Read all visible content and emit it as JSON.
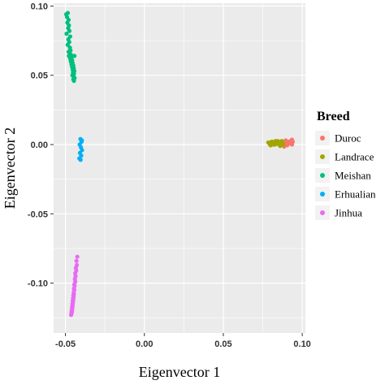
{
  "chart_data": {
    "type": "scatter",
    "xlabel": "Eigenvector 1",
    "ylabel": "Eigenvector 2",
    "xlim": [
      -0.0575,
      0.102
    ],
    "ylim": [
      -0.136,
      0.102
    ],
    "xticks": [
      -0.05,
      0.0,
      0.05,
      0.1
    ],
    "xtick_labels": [
      "-0.05",
      "0.00",
      "0.05",
      "0.10"
    ],
    "yticks": [
      -0.1,
      -0.05,
      0.0,
      0.05,
      0.1
    ],
    "ytick_labels": [
      "-0.10",
      "-0.05",
      "0.00",
      "0.05",
      "0.10"
    ],
    "grid": true,
    "background": "#ebebeb",
    "legend": {
      "title": "Breed",
      "position": "right"
    },
    "series": [
      {
        "name": "Duroc",
        "color": "#F8766D",
        "x": [
          0.085,
          0.0865,
          0.088,
          0.0895,
          0.091,
          0.0925,
          0.094,
          0.0935,
          0.092,
          0.0905,
          0.089,
          0.0875,
          0.086,
          0.0885,
          0.091,
          0.0935
        ],
        "y": [
          0.0015,
          0.002,
          0.001,
          0.003,
          0.002,
          0.0025,
          0.002,
          0.0,
          0.001,
          -0.0005,
          0.0015,
          0.0,
          0.001,
          -0.0015,
          0.0005,
          0.0035
        ]
      },
      {
        "name": "Landrace",
        "color": "#A3A500",
        "x": [
          0.0785,
          0.0795,
          0.0805,
          0.0815,
          0.0825,
          0.0835,
          0.0845,
          0.0855,
          0.0865,
          0.0875,
          0.08,
          0.082,
          0.084,
          0.086,
          0.088,
          0.081,
          0.083,
          0.085,
          0.087,
          0.0795
        ],
        "y": [
          0.0015,
          0.0005,
          0.002,
          0.001,
          0.0,
          0.0015,
          0.0025,
          0.0005,
          0.0015,
          0.001,
          -0.0005,
          0.0,
          0.0005,
          -0.001,
          0.0,
          0.002,
          0.0025,
          0.002,
          0.0025,
          0.0
        ],
        "note": ""
      },
      {
        "name": "Meishan",
        "color": "#00BF7D",
        "x": [
          -0.0495,
          -0.049,
          -0.0485,
          -0.048,
          -0.0488,
          -0.0478,
          -0.0483,
          -0.0475,
          -0.0493,
          -0.047,
          -0.0482,
          -0.0476,
          -0.0486,
          -0.0472,
          -0.0468,
          -0.048,
          -0.0474,
          -0.0466,
          -0.0478,
          -0.0462,
          -0.047,
          -0.0458,
          -0.0466,
          -0.0455,
          -0.0462,
          -0.045,
          -0.0458,
          -0.0447,
          -0.0454,
          -0.0444,
          -0.0452,
          -0.0446,
          -0.0456,
          -0.0448,
          -0.0442,
          -0.045,
          -0.0446,
          -0.0443
        ],
        "y": [
          0.094,
          0.092,
          0.095,
          0.09,
          0.088,
          0.086,
          0.084,
          0.082,
          0.08,
          0.078,
          0.076,
          0.074,
          0.072,
          0.07,
          0.068,
          0.067,
          0.066,
          0.065,
          0.064,
          0.063,
          0.062,
          0.061,
          0.06,
          0.059,
          0.058,
          0.057,
          0.056,
          0.055,
          0.054,
          0.053,
          0.052,
          0.051,
          0.05,
          0.049,
          0.048,
          0.047,
          0.046,
          0.064
        ]
      },
      {
        "name": "Erhualian",
        "color": "#00B0F6",
        "x": [
          -0.0405,
          -0.0398,
          -0.041,
          -0.0402,
          -0.0395,
          -0.0408,
          -0.04,
          -0.0412,
          -0.0396,
          -0.0404
        ],
        "y": [
          0.004,
          0.002,
          0.0,
          -0.002,
          -0.004,
          -0.006,
          -0.008,
          -0.01,
          0.003,
          -0.011
        ]
      },
      {
        "name": "Jinhua",
        "color": "#E76BF3",
        "x": [
          -0.0425,
          -0.043,
          -0.0428,
          -0.0434,
          -0.0432,
          -0.0438,
          -0.0436,
          -0.044,
          -0.0438,
          -0.0444,
          -0.0442,
          -0.0446,
          -0.0444,
          -0.0448,
          -0.0446,
          -0.045,
          -0.0448,
          -0.0452,
          -0.045,
          -0.0454,
          -0.0452,
          -0.0456,
          -0.0454,
          -0.0458,
          -0.0456,
          -0.046,
          -0.0458,
          -0.0462,
          -0.046,
          -0.0464
        ],
        "y": [
          -0.081,
          -0.084,
          -0.087,
          -0.089,
          -0.091,
          -0.093,
          -0.095,
          -0.097,
          -0.099,
          -0.101,
          -0.102,
          -0.104,
          -0.105,
          -0.107,
          -0.108,
          -0.109,
          -0.11,
          -0.111,
          -0.112,
          -0.113,
          -0.114,
          -0.115,
          -0.116,
          -0.117,
          -0.118,
          -0.119,
          -0.12,
          -0.121,
          -0.1215,
          -0.123
        ]
      }
    ]
  }
}
